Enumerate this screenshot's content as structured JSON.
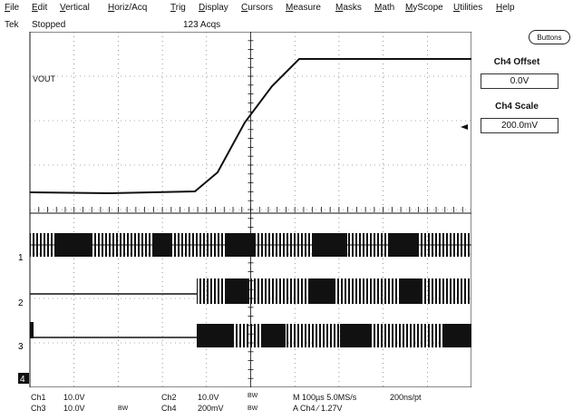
{
  "menu": [
    {
      "key": "file",
      "label": "File"
    },
    {
      "key": "edit",
      "label": "Edit"
    },
    {
      "key": "vertical",
      "label": "Vertical"
    },
    {
      "key": "horiz",
      "label": "Horiz/Acq"
    },
    {
      "key": "trig",
      "label": "Trig"
    },
    {
      "key": "display",
      "label": "Display"
    },
    {
      "key": "cursors",
      "label": "Cursors"
    },
    {
      "key": "measure",
      "label": "Measure"
    },
    {
      "key": "masks",
      "label": "Masks"
    },
    {
      "key": "math",
      "label": "Math"
    },
    {
      "key": "myscope",
      "label": "MyScope"
    },
    {
      "key": "utilities",
      "label": "Utilities"
    },
    {
      "key": "help",
      "label": "Help"
    }
  ],
  "status": {
    "brand": "Tek",
    "state": "Stopped",
    "acqs": "123 Acqs"
  },
  "buttons_label": "Buttons",
  "panel": {
    "offset_label": "Ch4 Offset",
    "offset_value": "0.0V",
    "scale_label": "Ch4 Scale",
    "scale_value": "200.0mV"
  },
  "waveform": {
    "label": "VOUT"
  },
  "markers": {
    "ch1": "1",
    "ch2": "2",
    "ch3": "3",
    "ch4": "4"
  },
  "readouts": {
    "ch1_label": "Ch1",
    "ch1_value": "10.0V",
    "ch3_label": "Ch3",
    "ch3_value": "10.0V",
    "ch3_bw": "BW",
    "ch2_label": "Ch2",
    "ch2_value": "10.0V",
    "ch2_bw": "BW",
    "ch4_label": "Ch4",
    "ch4_value": "200mV",
    "ch4_bw": "BW",
    "timebase": "M 100µs 5.0MS/s",
    "sample": "200ns/pt",
    "trigger": "A Ch4 ⁄ 1.27V"
  },
  "colors": {
    "background": "#ffffff",
    "trace": "#111111",
    "grid": "#555555"
  }
}
